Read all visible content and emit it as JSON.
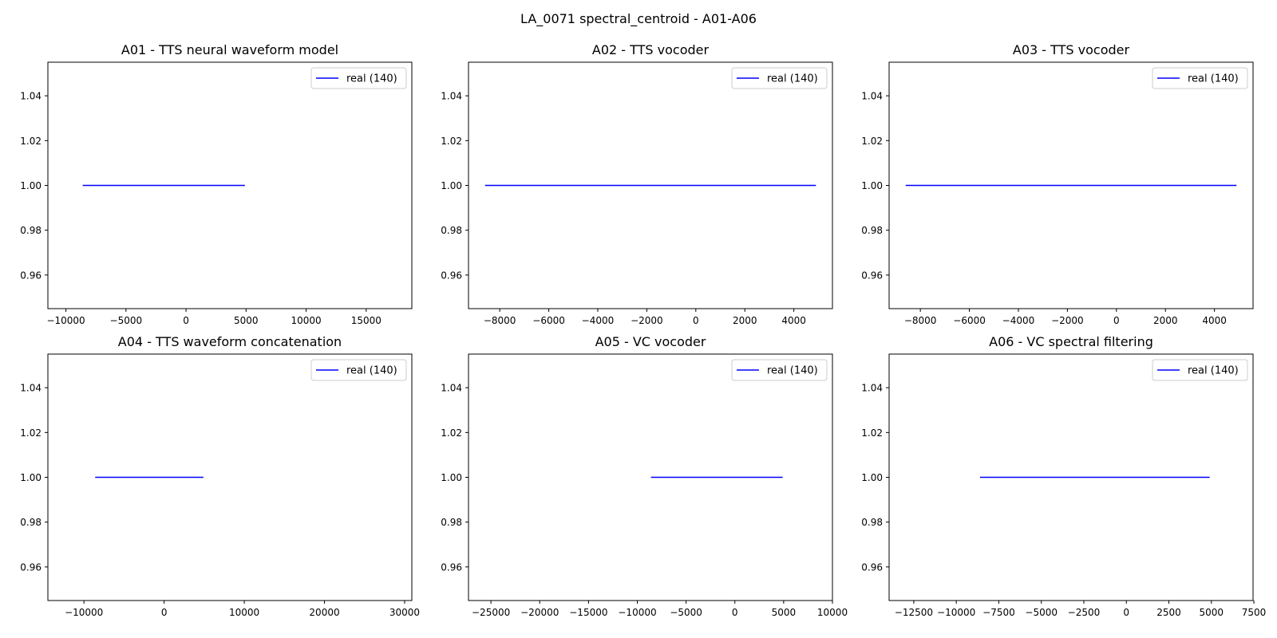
{
  "figure_title": "LA_0071 spectral_centroid - A01-A06",
  "chart_data": [
    {
      "type": "line",
      "title": "A01 - TTS neural waveform model",
      "xlabel": "",
      "ylabel": "",
      "xlim": [
        -11500,
        18800
      ],
      "ylim": [
        0.945,
        1.055
      ],
      "xticks": [
        -10000,
        -5000,
        0,
        5000,
        10000,
        15000
      ],
      "xtick_labels": [
        "−10000",
        "−5000",
        "0",
        "5000",
        "10000",
        "15000"
      ],
      "yticks": [
        0.96,
        0.98,
        1.0,
        1.02,
        1.04
      ],
      "ytick_labels": [
        "0.96",
        "0.98",
        "1.00",
        "1.02",
        "1.04"
      ],
      "legend": "upper right",
      "grid": false,
      "series": [
        {
          "name": "real (140)",
          "color": "#0000ff",
          "x": [
            -8600,
            4900
          ],
          "y": [
            1.0,
            1.0
          ]
        }
      ]
    },
    {
      "type": "line",
      "title": "A02 - TTS vocoder",
      "xlabel": "",
      "ylabel": "",
      "xlim": [
        -9275,
        5575
      ],
      "ylim": [
        0.945,
        1.055
      ],
      "xticks": [
        -8000,
        -6000,
        -4000,
        -2000,
        0,
        2000,
        4000
      ],
      "xtick_labels": [
        "−8000",
        "−6000",
        "−4000",
        "−2000",
        "0",
        "2000",
        "4000"
      ],
      "yticks": [
        0.96,
        0.98,
        1.0,
        1.02,
        1.04
      ],
      "ytick_labels": [
        "0.96",
        "0.98",
        "1.00",
        "1.02",
        "1.04"
      ],
      "legend": "upper right",
      "grid": false,
      "series": [
        {
          "name": "real (140)",
          "color": "#0000ff",
          "x": [
            -8600,
            4900
          ],
          "y": [
            1.0,
            1.0
          ]
        }
      ]
    },
    {
      "type": "line",
      "title": "A03 - TTS vocoder",
      "xlabel": "",
      "ylabel": "",
      "xlim": [
        -9275,
        5575
      ],
      "ylim": [
        0.945,
        1.055
      ],
      "xticks": [
        -8000,
        -6000,
        -4000,
        -2000,
        0,
        2000,
        4000
      ],
      "xtick_labels": [
        "−8000",
        "−6000",
        "−4000",
        "−2000",
        "0",
        "2000",
        "4000"
      ],
      "yticks": [
        0.96,
        0.98,
        1.0,
        1.02,
        1.04
      ],
      "ytick_labels": [
        "0.96",
        "0.98",
        "1.00",
        "1.02",
        "1.04"
      ],
      "legend": "upper right",
      "grid": false,
      "series": [
        {
          "name": "real (140)",
          "color": "#0000ff",
          "x": [
            -8600,
            4900
          ],
          "y": [
            1.0,
            1.0
          ]
        }
      ]
    },
    {
      "type": "line",
      "title": "A04 - TTS waveform concatenation",
      "xlabel": "",
      "ylabel": "",
      "xlim": [
        -14500,
        30900
      ],
      "ylim": [
        0.945,
        1.055
      ],
      "xticks": [
        -10000,
        0,
        10000,
        20000,
        30000
      ],
      "xtick_labels": [
        "−10000",
        "0",
        "10000",
        "20000",
        "30000"
      ],
      "yticks": [
        0.96,
        0.98,
        1.0,
        1.02,
        1.04
      ],
      "ytick_labels": [
        "0.96",
        "0.98",
        "1.00",
        "1.02",
        "1.04"
      ],
      "legend": "upper right",
      "grid": false,
      "series": [
        {
          "name": "real (140)",
          "color": "#0000ff",
          "x": [
            -8600,
            4900
          ],
          "y": [
            1.0,
            1.0
          ]
        }
      ]
    },
    {
      "type": "line",
      "title": "A05 - VC vocoder",
      "xlabel": "",
      "ylabel": "",
      "xlim": [
        -27300,
        10000
      ],
      "ylim": [
        0.945,
        1.055
      ],
      "xticks": [
        -25000,
        -20000,
        -15000,
        -10000,
        -5000,
        0,
        5000,
        10000
      ],
      "xtick_labels": [
        "−25000",
        "−20000",
        "−15000",
        "−10000",
        "−5000",
        "0",
        "5000",
        "10000"
      ],
      "yticks": [
        0.96,
        0.98,
        1.0,
        1.02,
        1.04
      ],
      "ytick_labels": [
        "0.96",
        "0.98",
        "1.00",
        "1.02",
        "1.04"
      ],
      "legend": "upper right",
      "grid": false,
      "series": [
        {
          "name": "real (140)",
          "color": "#0000ff",
          "x": [
            -8600,
            4900
          ],
          "y": [
            1.0,
            1.0
          ]
        }
      ]
    },
    {
      "type": "line",
      "title": "A06 - VC spectral filtering",
      "xlabel": "",
      "ylabel": "",
      "xlim": [
        -13950,
        7450
      ],
      "ylim": [
        0.945,
        1.055
      ],
      "xticks": [
        -12500,
        -10000,
        -7500,
        -5000,
        -2500,
        0,
        2500,
        5000,
        7500
      ],
      "xtick_labels": [
        "−12500",
        "−10000",
        "−7500",
        "−5000",
        "−2500",
        "0",
        "2500",
        "5000",
        "7500"
      ],
      "yticks": [
        0.96,
        0.98,
        1.0,
        1.02,
        1.04
      ],
      "ytick_labels": [
        "0.96",
        "0.98",
        "1.00",
        "1.02",
        "1.04"
      ],
      "legend": "upper right",
      "grid": false,
      "series": [
        {
          "name": "real (140)",
          "color": "#0000ff",
          "x": [
            -8600,
            4900
          ],
          "y": [
            1.0,
            1.0
          ]
        }
      ]
    }
  ]
}
